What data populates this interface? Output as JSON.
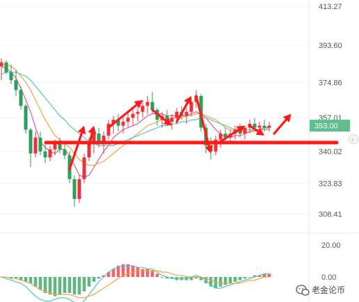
{
  "chart_data": {
    "type": "candlestick",
    "title": "",
    "price_axis": {
      "ticks": [
        "413.27",
        "393.60",
        "374.86",
        "357.01",
        "340.02",
        "323.83",
        "308.41"
      ],
      "range": [
        300.5,
        416.5
      ]
    },
    "current_price": {
      "label": "353.00",
      "value": 353.0
    },
    "indicator_axis": {
      "ticks": [
        "20.00",
        "0.00"
      ],
      "range": [
        -26,
        26
      ]
    },
    "colors": {
      "up": "#e8333a",
      "down": "#2e9e5b",
      "ma1": "#e0579f",
      "ma2": "#f2a53a",
      "ma3": "#4fc7c4",
      "annotation": "#ff1a1a",
      "price_tag": "#5fbf8f"
    },
    "candles": [
      {
        "o": 383,
        "h": 387,
        "l": 376,
        "c": 385
      },
      {
        "o": 385,
        "h": 386,
        "l": 379,
        "c": 380
      },
      {
        "o": 380,
        "h": 384,
        "l": 374,
        "c": 376
      },
      {
        "o": 376,
        "h": 381,
        "l": 368,
        "c": 371
      },
      {
        "o": 371,
        "h": 373,
        "l": 361,
        "c": 363
      },
      {
        "o": 363,
        "h": 364,
        "l": 349,
        "c": 351
      },
      {
        "o": 351,
        "h": 352,
        "l": 332,
        "c": 339
      },
      {
        "o": 339,
        "h": 350,
        "l": 337,
        "c": 347
      },
      {
        "o": 347,
        "h": 350,
        "l": 338,
        "c": 340
      },
      {
        "o": 340,
        "h": 344,
        "l": 334,
        "c": 337
      },
      {
        "o": 337,
        "h": 343,
        "l": 335,
        "c": 341
      },
      {
        "o": 341,
        "h": 346,
        "l": 338,
        "c": 344
      },
      {
        "o": 344,
        "h": 347,
        "l": 339,
        "c": 341
      },
      {
        "o": 341,
        "h": 345,
        "l": 336,
        "c": 338
      },
      {
        "o": 338,
        "h": 340,
        "l": 324,
        "c": 326
      },
      {
        "o": 326,
        "h": 328,
        "l": 312,
        "c": 316
      },
      {
        "o": 316,
        "h": 328,
        "l": 314,
        "c": 326
      },
      {
        "o": 326,
        "h": 339,
        "l": 324,
        "c": 337
      },
      {
        "o": 337,
        "h": 347,
        "l": 335,
        "c": 345
      },
      {
        "o": 345,
        "h": 351,
        "l": 339,
        "c": 349
      },
      {
        "o": 349,
        "h": 352,
        "l": 342,
        "c": 345
      },
      {
        "o": 345,
        "h": 350,
        "l": 339,
        "c": 348
      },
      {
        "o": 348,
        "h": 356,
        "l": 346,
        "c": 354
      },
      {
        "o": 354,
        "h": 358,
        "l": 349,
        "c": 356
      },
      {
        "o": 356,
        "h": 359,
        "l": 350,
        "c": 353
      },
      {
        "o": 353,
        "h": 358,
        "l": 349,
        "c": 355
      },
      {
        "o": 355,
        "h": 360,
        "l": 352,
        "c": 357
      },
      {
        "o": 357,
        "h": 362,
        "l": 353,
        "c": 359
      },
      {
        "o": 359,
        "h": 363,
        "l": 355,
        "c": 360
      },
      {
        "o": 360,
        "h": 366,
        "l": 357,
        "c": 363
      },
      {
        "o": 363,
        "h": 368,
        "l": 359,
        "c": 365
      },
      {
        "o": 365,
        "h": 370,
        "l": 359,
        "c": 361
      },
      {
        "o": 361,
        "h": 362,
        "l": 353,
        "c": 356
      },
      {
        "o": 356,
        "h": 360,
        "l": 352,
        "c": 358
      },
      {
        "o": 358,
        "h": 361,
        "l": 353,
        "c": 355
      },
      {
        "o": 355,
        "h": 359,
        "l": 351,
        "c": 357
      },
      {
        "o": 357,
        "h": 362,
        "l": 354,
        "c": 360
      },
      {
        "o": 360,
        "h": 363,
        "l": 356,
        "c": 358
      },
      {
        "o": 358,
        "h": 362,
        "l": 354,
        "c": 360
      },
      {
        "o": 360,
        "h": 367,
        "l": 358,
        "c": 365
      },
      {
        "o": 365,
        "h": 371,
        "l": 362,
        "c": 368
      },
      {
        "o": 368,
        "h": 369,
        "l": 350,
        "c": 352
      },
      {
        "o": 352,
        "h": 354,
        "l": 339,
        "c": 343
      },
      {
        "o": 343,
        "h": 347,
        "l": 336,
        "c": 340
      },
      {
        "o": 340,
        "h": 348,
        "l": 338,
        "c": 346
      },
      {
        "o": 346,
        "h": 351,
        "l": 342,
        "c": 349
      },
      {
        "o": 349,
        "h": 352,
        "l": 345,
        "c": 347
      },
      {
        "o": 347,
        "h": 351,
        "l": 344,
        "c": 349
      },
      {
        "o": 349,
        "h": 353,
        "l": 346,
        "c": 351
      },
      {
        "o": 351,
        "h": 354,
        "l": 347,
        "c": 349
      },
      {
        "o": 349,
        "h": 353,
        "l": 346,
        "c": 352
      },
      {
        "o": 352,
        "h": 356,
        "l": 349,
        "c": 354
      },
      {
        "o": 354,
        "h": 357,
        "l": 350,
        "c": 352
      },
      {
        "o": 352,
        "h": 355,
        "l": 349,
        "c": 353
      },
      {
        "o": 353,
        "h": 356,
        "l": 350,
        "c": 352
      },
      {
        "o": 352,
        "h": 355,
        "l": 350,
        "c": 353
      }
    ],
    "ma_series": [
      {
        "values": [
          383,
          382,
          380,
          377,
          372,
          366,
          360,
          352,
          345,
          342,
          340,
          339,
          341,
          341,
          338,
          333,
          328,
          327,
          328,
          332,
          336,
          340,
          343,
          347,
          349,
          351,
          352,
          353,
          354,
          356,
          358,
          359,
          359,
          359,
          358,
          358,
          358,
          358,
          358,
          359,
          360,
          359,
          357,
          354,
          351,
          349,
          347,
          347,
          348,
          348,
          349,
          350,
          351,
          351,
          352,
          352
        ]
      },
      {
        "values": [
          384,
          384,
          383,
          381,
          378,
          375,
          371,
          366,
          361,
          356,
          352,
          348,
          346,
          344,
          342,
          339,
          336,
          334,
          333,
          333,
          334,
          335,
          337,
          339,
          341,
          343,
          345,
          347,
          349,
          351,
          353,
          354,
          355,
          356,
          356,
          357,
          357,
          357,
          358,
          358,
          359,
          359,
          358,
          357,
          356,
          354,
          352,
          351,
          350,
          350,
          350,
          350,
          350,
          351,
          351,
          352
        ]
      },
      {
        "values": [
          379,
          380,
          380,
          380,
          379,
          378,
          376,
          373,
          370,
          367,
          364,
          361,
          358,
          356,
          353,
          351,
          349,
          347,
          345,
          344,
          343,
          343,
          343,
          343,
          344,
          345,
          346,
          347,
          348,
          349,
          350,
          351,
          352,
          353,
          353,
          354,
          354,
          355,
          355,
          356,
          356,
          357,
          357,
          356,
          355,
          354,
          353,
          352,
          351,
          351,
          351,
          351,
          351,
          351,
          351,
          351
        ]
      }
    ],
    "macd": {
      "hist": [
        0,
        0,
        -1,
        -1,
        -2,
        -3,
        -4,
        -6,
        -8,
        -10,
        -11,
        -12,
        -11,
        -10,
        -10,
        -11,
        -11,
        -9,
        -6,
        -3,
        -1,
        1,
        3,
        5,
        7,
        8,
        8,
        7,
        6,
        5,
        5,
        4,
        2,
        0,
        -1,
        -1,
        -2,
        -2,
        -2,
        -2,
        -1,
        -2,
        -4,
        -6,
        -7,
        -6,
        -5,
        -4,
        -3,
        -2,
        -1,
        0,
        1,
        1,
        2,
        2
      ],
      "dif": [
        0,
        -1,
        -2,
        -3,
        -4,
        -6,
        -9,
        -12,
        -14,
        -15,
        -15,
        -14,
        -13,
        -13,
        -14,
        -16,
        -17,
        -15,
        -11,
        -7,
        -3,
        0,
        3,
        5,
        6,
        7,
        7,
        7,
        6,
        6,
        5,
        5,
        3,
        1,
        0,
        -1,
        -1,
        -1,
        -1,
        0,
        1,
        0,
        -2,
        -5,
        -7,
        -7,
        -6,
        -5,
        -4,
        -3,
        -2,
        -1,
        0,
        1,
        2,
        2
      ],
      "dea": [
        0,
        0,
        -1,
        -1,
        -2,
        -3,
        -4,
        -6,
        -8,
        -9,
        -10,
        -11,
        -11,
        -11,
        -11,
        -12,
        -13,
        -13,
        -12,
        -11,
        -9,
        -7,
        -5,
        -3,
        -1,
        1,
        2,
        3,
        4,
        4,
        4,
        4,
        4,
        3,
        3,
        2,
        1,
        1,
        0,
        0,
        0,
        0,
        -1,
        -2,
        -3,
        -4,
        -4,
        -4,
        -4,
        -4,
        -3,
        -2,
        -2,
        -1,
        0,
        0
      ]
    },
    "annotations": {
      "support_line": 344.5,
      "arrows": [
        {
          "from": [
            14,
            331
          ],
          "to": [
            17,
            353
          ]
        },
        {
          "from": [
            18,
            343
          ],
          "to": [
            19,
            353
          ]
        },
        {
          "from": [
            22,
            352
          ],
          "to": [
            29,
            366
          ]
        },
        {
          "from": [
            31,
            361
          ],
          "to": [
            35,
            353
          ]
        },
        {
          "from": [
            36,
            355
          ],
          "to": [
            39,
            368
          ]
        },
        {
          "from": [
            40,
            368
          ],
          "to": [
            43,
            339
          ]
        },
        {
          "from": [
            45,
            345
          ],
          "to": [
            50,
            353
          ]
        },
        {
          "from": [
            51,
            353
          ],
          "to": [
            54,
            348
          ]
        },
        {
          "from": [
            56,
            349
          ],
          "to": [
            59.5,
            359
          ]
        }
      ]
    }
  },
  "watermark": {
    "icon": "wechat-icon",
    "text": "老金论币"
  }
}
